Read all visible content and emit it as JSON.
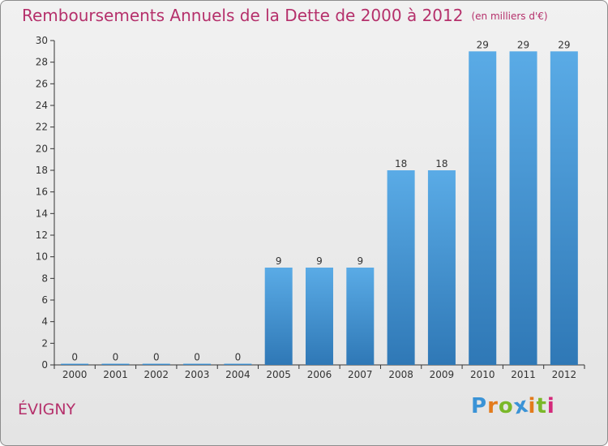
{
  "chart_data": {
    "type": "bar",
    "title": "Remboursements Annuels de la Dette de 2000 à 2012",
    "subtitle": "(en milliers d'€)",
    "categories": [
      "2000",
      "2001",
      "2002",
      "2003",
      "2004",
      "2005",
      "2006",
      "2007",
      "2008",
      "2009",
      "2010",
      "2011",
      "2012"
    ],
    "values": [
      0,
      0,
      0,
      0,
      0,
      9,
      9,
      9,
      18,
      18,
      29,
      29,
      29
    ],
    "data_labels": [
      "0",
      "0",
      "0",
      "0",
      "0",
      "9",
      "9",
      "9",
      "18",
      "18",
      "29",
      "29",
      "29"
    ],
    "ylim": [
      0,
      30
    ],
    "yticks": [
      0,
      2,
      4,
      6,
      8,
      10,
      12,
      14,
      16,
      18,
      20,
      22,
      24,
      26,
      28,
      30
    ],
    "grid": false,
    "bar_color_top": "#5aabe6",
    "bar_color_bottom": "#2f78b6"
  },
  "footer": {
    "commune": "ÉVIGNY",
    "logo_letters": [
      "P",
      "r",
      "o",
      "x",
      "i",
      "t",
      "i"
    ],
    "logo_colors": [
      "#3a93d6",
      "#e37b1c",
      "#7ab829",
      "#3a93d6",
      "#e37b1c",
      "#7ab829",
      "#d4297a"
    ]
  }
}
